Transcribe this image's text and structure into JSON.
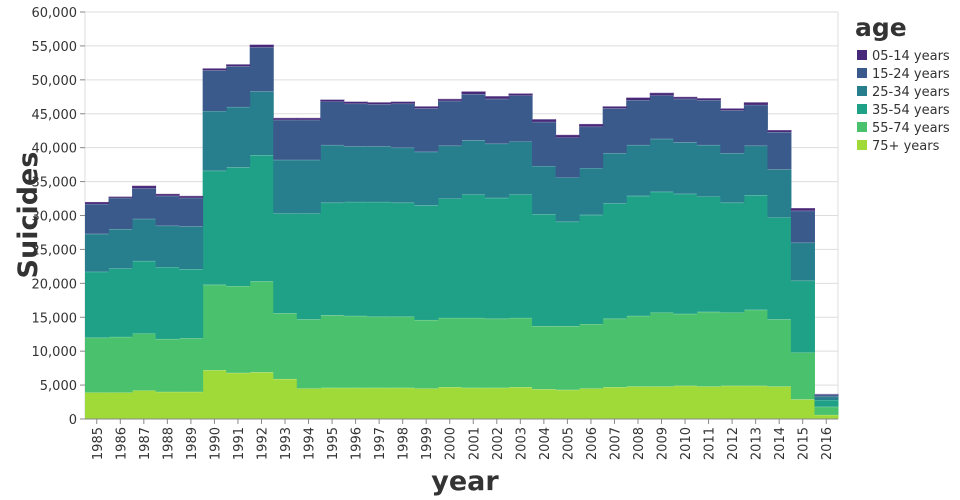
{
  "chart_data": {
    "type": "area",
    "stacked": true,
    "interpolation": "step",
    "title": "",
    "xlabel": "year",
    "ylabel": "Suicides",
    "ylim": [
      0,
      60000
    ],
    "yticks": [
      "0",
      "5,000",
      "10,000",
      "15,000",
      "20,000",
      "25,000",
      "30,000",
      "35,000",
      "40,000",
      "45,000",
      "50,000",
      "55,000",
      "60,000"
    ],
    "grid": true,
    "legend": {
      "title": "age",
      "placement": "right"
    },
    "x": [
      1985,
      1986,
      1987,
      1988,
      1989,
      1990,
      1991,
      1992,
      1993,
      1994,
      1995,
      1996,
      1997,
      1998,
      1999,
      2000,
      2001,
      2002,
      2003,
      2004,
      2005,
      2006,
      2007,
      2008,
      2009,
      2010,
      2011,
      2012,
      2013,
      2014,
      2015,
      2016
    ],
    "series": [
      {
        "name": "75+ years",
        "color": "#a0da39",
        "values": [
          3900,
          3900,
          4200,
          4000,
          4000,
          7200,
          6800,
          6900,
          5900,
          4500,
          4600,
          4600,
          4600,
          4600,
          4500,
          4700,
          4600,
          4600,
          4700,
          4400,
          4300,
          4500,
          4700,
          4800,
          4800,
          4900,
          4800,
          4900,
          4900,
          4800,
          2900,
          600
        ]
      },
      {
        "name": "55-74 years",
        "color": "#4ac16d",
        "values": [
          8100,
          8200,
          8400,
          7800,
          7900,
          12600,
          12800,
          13400,
          9700,
          10200,
          10700,
          10600,
          10500,
          10500,
          10100,
          10200,
          10300,
          10200,
          10200,
          9300,
          9400,
          9500,
          10100,
          10400,
          10900,
          10600,
          11000,
          10800,
          11200,
          9900,
          6900,
          1200
        ]
      },
      {
        "name": "35-54 years",
        "color": "#1fa187",
        "values": [
          9700,
          10100,
          10700,
          10600,
          10200,
          16800,
          17500,
          18600,
          14700,
          15600,
          16600,
          16800,
          16900,
          16800,
          16900,
          17600,
          18200,
          17800,
          18200,
          16500,
          15400,
          16100,
          17000,
          17700,
          17800,
          17700,
          17000,
          16200,
          16900,
          15000,
          10600,
          1000
        ]
      },
      {
        "name": "25-34 years",
        "color": "#277f8e",
        "values": [
          5600,
          5800,
          6200,
          6100,
          6300,
          8800,
          8900,
          9400,
          7900,
          7900,
          8500,
          8200,
          8200,
          8100,
          7900,
          7800,
          8000,
          8000,
          7800,
          7100,
          6500,
          6900,
          7400,
          7500,
          7800,
          7600,
          7600,
          7300,
          7300,
          7100,
          5600,
          500
        ]
      },
      {
        "name": "15-24 years",
        "color": "#3a5a8c",
        "values": [
          4400,
          4600,
          4500,
          4400,
          4200,
          6000,
          6000,
          6500,
          5900,
          5900,
          6400,
          6300,
          6200,
          6500,
          6400,
          6600,
          6800,
          6600,
          6800,
          6500,
          5900,
          6100,
          6600,
          6600,
          6400,
          6400,
          6600,
          6300,
          6000,
          5500,
          4700,
          300
        ]
      },
      {
        "name": "05-14 years",
        "color": "#482878",
        "values": [
          300,
          200,
          400,
          300,
          300,
          300,
          300,
          400,
          300,
          300,
          300,
          300,
          300,
          300,
          300,
          300,
          400,
          400,
          300,
          400,
          400,
          400,
          300,
          400,
          400,
          300,
          300,
          300,
          400,
          300,
          400,
          100
        ]
      }
    ],
    "legend_order": [
      "05-14 years",
      "15-24 years",
      "25-34 years",
      "35-54 years",
      "55-74 years",
      "75+ years"
    ]
  }
}
